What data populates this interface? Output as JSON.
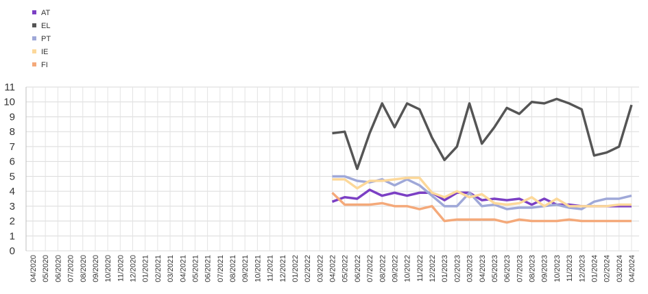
{
  "chart_data": {
    "type": "line",
    "categories": [
      "04/2020",
      "05/2020",
      "06/2020",
      "07/2020",
      "08/2020",
      "09/2020",
      "10/2020",
      "11/2020",
      "12/2020",
      "01/2021",
      "02/2021",
      "03/2021",
      "04/2021",
      "05/2021",
      "06/2021",
      "07/2021",
      "08/2021",
      "09/2021",
      "10/2021",
      "11/2021",
      "12/2021",
      "01/2022",
      "02/2022",
      "03/2022",
      "04/2022",
      "05/2022",
      "06/2022",
      "07/2022",
      "08/2022",
      "09/2022",
      "10/2022",
      "11/2022",
      "12/2022",
      "01/2023",
      "02/2023",
      "03/2023",
      "04/2023",
      "05/2023",
      "06/2023",
      "07/2023",
      "08/2023",
      "09/2023",
      "10/2023",
      "11/2023",
      "12/2023",
      "01/2024",
      "02/2024",
      "03/2024",
      "04/2024"
    ],
    "series": [
      {
        "name": "AT",
        "color": "#7b3fc4",
        "values": [
          null,
          null,
          null,
          null,
          null,
          null,
          null,
          null,
          null,
          null,
          null,
          null,
          null,
          null,
          null,
          null,
          null,
          null,
          null,
          null,
          null,
          null,
          null,
          null,
          3.3,
          3.6,
          3.5,
          4.1,
          3.7,
          3.9,
          3.7,
          3.9,
          3.9,
          3.4,
          3.9,
          3.9,
          3.4,
          3.5,
          3.4,
          3.5,
          3.1,
          3.5,
          3.1,
          3.1,
          3.0,
          3.0,
          3.0,
          3.0,
          3.0
        ]
      },
      {
        "name": "EL",
        "color": "#555555",
        "values": [
          null,
          null,
          null,
          null,
          null,
          null,
          null,
          null,
          null,
          null,
          null,
          null,
          null,
          null,
          null,
          null,
          null,
          null,
          null,
          null,
          null,
          null,
          null,
          null,
          7.9,
          8.0,
          5.5,
          7.9,
          9.9,
          8.3,
          9.9,
          9.5,
          7.6,
          6.1,
          7.0,
          9.9,
          7.2,
          8.3,
          9.6,
          9.2,
          10.0,
          9.9,
          10.2,
          9.9,
          9.5,
          6.4,
          6.6,
          7.0,
          9.8
        ]
      },
      {
        "name": "PT",
        "color": "#9fa8d8",
        "values": [
          null,
          null,
          null,
          null,
          null,
          null,
          null,
          null,
          null,
          null,
          null,
          null,
          null,
          null,
          null,
          null,
          null,
          null,
          null,
          null,
          null,
          null,
          null,
          null,
          5.0,
          5.0,
          4.7,
          4.6,
          4.8,
          4.4,
          4.8,
          4.4,
          3.7,
          3.0,
          3.0,
          3.9,
          3.0,
          3.1,
          2.8,
          2.9,
          2.9,
          3.0,
          3.1,
          2.9,
          2.8,
          3.3,
          3.5,
          3.5,
          3.7
        ]
      },
      {
        "name": "IE",
        "color": "#fcd89a",
        "values": [
          null,
          null,
          null,
          null,
          null,
          null,
          null,
          null,
          null,
          null,
          null,
          null,
          null,
          null,
          null,
          null,
          null,
          null,
          null,
          null,
          null,
          null,
          null,
          null,
          4.8,
          4.8,
          4.2,
          4.7,
          4.7,
          4.8,
          4.9,
          4.9,
          3.9,
          3.6,
          4.0,
          3.6,
          3.8,
          3.2,
          3.1,
          3.2,
          3.6,
          3.0,
          3.5,
          3.0,
          3.0,
          3.0,
          3.0,
          3.1,
          3.1
        ]
      },
      {
        "name": "FI",
        "color": "#f4a97a",
        "values": [
          null,
          null,
          null,
          null,
          null,
          null,
          null,
          null,
          null,
          null,
          null,
          null,
          null,
          null,
          null,
          null,
          null,
          null,
          null,
          null,
          null,
          null,
          null,
          null,
          3.9,
          3.1,
          3.1,
          3.1,
          3.2,
          3.0,
          3.0,
          2.8,
          3.0,
          2.0,
          2.1,
          2.1,
          2.1,
          2.1,
          1.9,
          2.1,
          2.0,
          2.0,
          2.0,
          2.1,
          2.0,
          2.0,
          2.0,
          2.0,
          2.0
        ]
      }
    ],
    "ylim": [
      0,
      11
    ],
    "yticks": [
      0,
      1,
      2,
      3,
      4,
      5,
      6,
      7,
      8,
      9,
      10,
      11
    ],
    "grid": true,
    "legend": "top-left"
  }
}
